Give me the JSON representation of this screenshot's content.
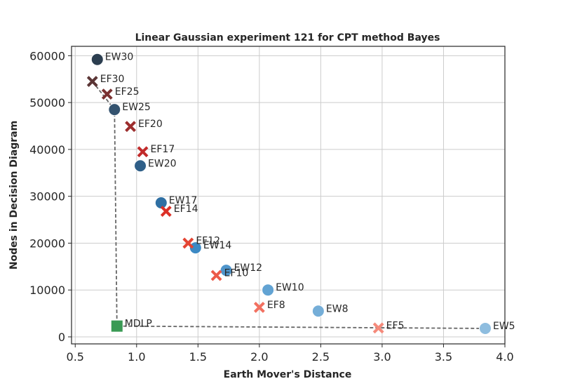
{
  "chart_data": {
    "type": "scatter",
    "title": "Linear Gaussian experiment 121 for CPT method Bayes",
    "xlabel": "Earth Mover's Distance",
    "ylabel": "Nodes in Decision Diagram",
    "xlim": [
      0.47,
      4.0
    ],
    "ylim": [
      -1500,
      62000
    ],
    "xticks": [
      0.5,
      1.0,
      1.5,
      2.0,
      2.5,
      3.0,
      3.5,
      4.0
    ],
    "xtick_labels": [
      "0.5",
      "1.0",
      "1.5",
      "2.0",
      "2.5",
      "3.0",
      "3.5",
      "4.0"
    ],
    "yticks": [
      0,
      10000,
      20000,
      30000,
      40000,
      50000,
      60000
    ],
    "ytick_labels": [
      "0",
      "10000",
      "20000",
      "30000",
      "40000",
      "50000",
      "60000"
    ],
    "grid": true,
    "frontier_line": [
      {
        "x": 0.64,
        "y": 54500
      },
      {
        "x": 0.82,
        "y": 48500
      },
      {
        "x": 0.84,
        "y": 2300
      },
      {
        "x": 3.84,
        "y": 1800
      }
    ],
    "series": [
      {
        "marker": "circle",
        "points": [
          {
            "label": "EW30",
            "x": 0.68,
            "y": 59200,
            "color": "#2c3e50"
          },
          {
            "label": "EW25",
            "x": 0.82,
            "y": 48500,
            "color": "#34536f"
          },
          {
            "label": "EW20",
            "x": 1.03,
            "y": 36500,
            "color": "#2f5f88"
          },
          {
            "label": "EW17",
            "x": 1.2,
            "y": 28600,
            "color": "#2f6fa3"
          },
          {
            "label": "EW14",
            "x": 1.48,
            "y": 19000,
            "color": "#3c89c4"
          },
          {
            "label": "EW12",
            "x": 1.73,
            "y": 14200,
            "color": "#4f95cb"
          },
          {
            "label": "EW10",
            "x": 2.07,
            "y": 10000,
            "color": "#62a3d3"
          },
          {
            "label": "EW8",
            "x": 2.48,
            "y": 5500,
            "color": "#75aed8"
          },
          {
            "label": "EW5",
            "x": 3.84,
            "y": 1800,
            "color": "#8ebddf"
          }
        ]
      },
      {
        "marker": "x",
        "points": [
          {
            "label": "EF30",
            "x": 0.64,
            "y": 54500,
            "color": "#5b3535"
          },
          {
            "label": "EF25",
            "x": 0.76,
            "y": 51800,
            "color": "#7a3131"
          },
          {
            "label": "EF20",
            "x": 0.95,
            "y": 44900,
            "color": "#9c2d2d"
          },
          {
            "label": "EF17",
            "x": 1.05,
            "y": 39500,
            "color": "#c22a2a"
          },
          {
            "label": "EF14",
            "x": 1.24,
            "y": 26800,
            "color": "#dc3027"
          },
          {
            "label": "EF12",
            "x": 1.42,
            "y": 20000,
            "color": "#e44433"
          },
          {
            "label": "EF10",
            "x": 1.65,
            "y": 13100,
            "color": "#ec5a48"
          },
          {
            "label": "EF8",
            "x": 2.0,
            "y": 6300,
            "color": "#f27060"
          },
          {
            "label": "EF5",
            "x": 2.97,
            "y": 1900,
            "color": "#f58a7b"
          }
        ]
      },
      {
        "marker": "square",
        "points": [
          {
            "label": "MDLP",
            "x": 0.84,
            "y": 2300,
            "color": "#3a9a55"
          }
        ]
      }
    ]
  }
}
